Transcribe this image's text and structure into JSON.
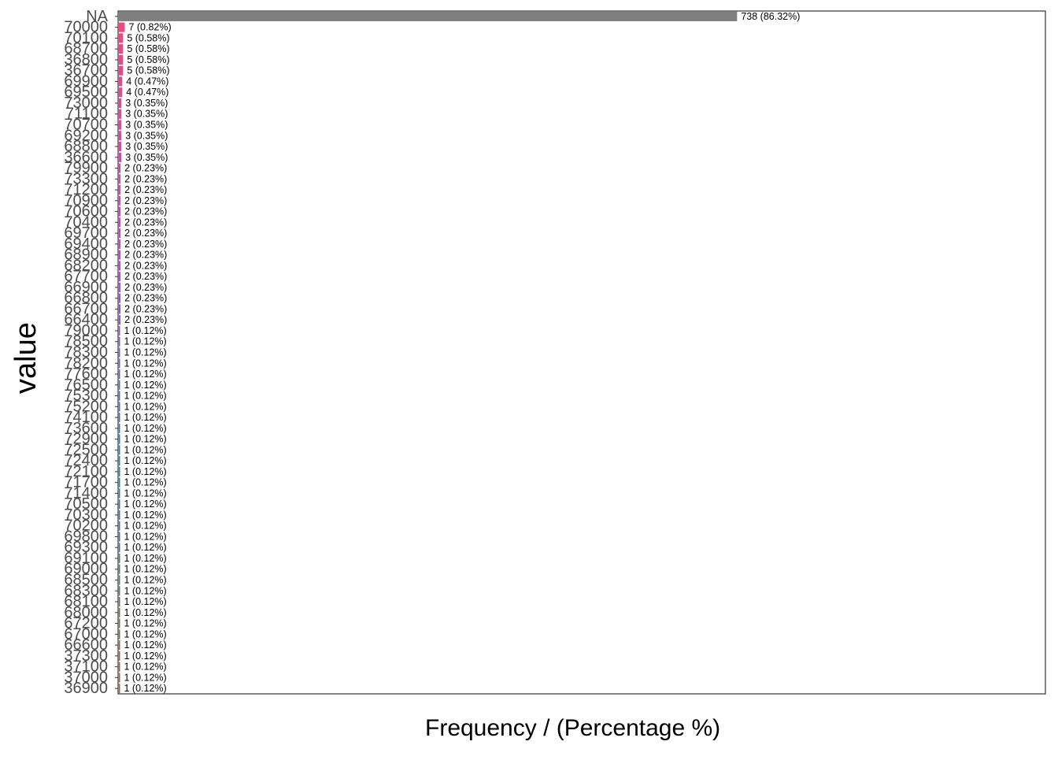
{
  "chart_data": {
    "type": "bar",
    "orientation": "horizontal",
    "xlabel": "Frequency / (Percentage %)",
    "ylabel": "value",
    "grid": false,
    "legend": "none",
    "na_bar_color": "#7f7f7f",
    "categories": [
      "NA",
      "70000",
      "70100",
      "68700",
      "36800",
      "36700",
      "69900",
      "69500",
      "73000",
      "71100",
      "70700",
      "69200",
      "68800",
      "36600",
      "79900",
      "73300",
      "71200",
      "70900",
      "70600",
      "70400",
      "69700",
      "69400",
      "68900",
      "68200",
      "67700",
      "66900",
      "66800",
      "66700",
      "66400",
      "79000",
      "78500",
      "78300",
      "78200",
      "77600",
      "76500",
      "75300",
      "75200",
      "74100",
      "73600",
      "72900",
      "72500",
      "72400",
      "72100",
      "71700",
      "71400",
      "70500",
      "70300",
      "70200",
      "69800",
      "69300",
      "69100",
      "69000",
      "68500",
      "68300",
      "68100",
      "68000",
      "67200",
      "67000",
      "66600",
      "37300",
      "37100",
      "37000",
      "36900"
    ],
    "values": [
      738,
      7,
      5,
      5,
      5,
      5,
      4,
      4,
      3,
      3,
      3,
      3,
      3,
      3,
      2,
      2,
      2,
      2,
      2,
      2,
      2,
      2,
      2,
      2,
      2,
      2,
      2,
      2,
      2,
      1,
      1,
      1,
      1,
      1,
      1,
      1,
      1,
      1,
      1,
      1,
      1,
      1,
      1,
      1,
      1,
      1,
      1,
      1,
      1,
      1,
      1,
      1,
      1,
      1,
      1,
      1,
      1,
      1,
      1,
      1,
      1,
      1,
      1
    ],
    "labels": [
      "738 (86.32%)",
      "7 (0.82%)",
      "5 (0.58%)",
      "5 (0.58%)",
      "5 (0.58%)",
      "5 (0.58%)",
      "4 (0.47%)",
      "4 (0.47%)",
      "3 (0.35%)",
      "3 (0.35%)",
      "3 (0.35%)",
      "3 (0.35%)",
      "3 (0.35%)",
      "3 (0.35%)",
      "2 (0.23%)",
      "2 (0.23%)",
      "2 (0.23%)",
      "2 (0.23%)",
      "2 (0.23%)",
      "2 (0.23%)",
      "2 (0.23%)",
      "2 (0.23%)",
      "2 (0.23%)",
      "2 (0.23%)",
      "2 (0.23%)",
      "2 (0.23%)",
      "2 (0.23%)",
      "2 (0.23%)",
      "2 (0.23%)",
      "1 (0.12%)",
      "1 (0.12%)",
      "1 (0.12%)",
      "1 (0.12%)",
      "1 (0.12%)",
      "1 (0.12%)",
      "1 (0.12%)",
      "1 (0.12%)",
      "1 (0.12%)",
      "1 (0.12%)",
      "1 (0.12%)",
      "1 (0.12%)",
      "1 (0.12%)",
      "1 (0.12%)",
      "1 (0.12%)",
      "1 (0.12%)",
      "1 (0.12%)",
      "1 (0.12%)",
      "1 (0.12%)",
      "1 (0.12%)",
      "1 (0.12%)",
      "1 (0.12%)",
      "1 (0.12%)",
      "1 (0.12%)",
      "1 (0.12%)",
      "1 (0.12%)",
      "1 (0.12%)",
      "1 (0.12%)",
      "1 (0.12%)",
      "1 (0.12%)",
      "1 (0.12%)",
      "1 (0.12%)",
      "1 (0.12%)",
      "1 (0.12%)"
    ],
    "xlim": [
      0,
      1107
    ]
  }
}
